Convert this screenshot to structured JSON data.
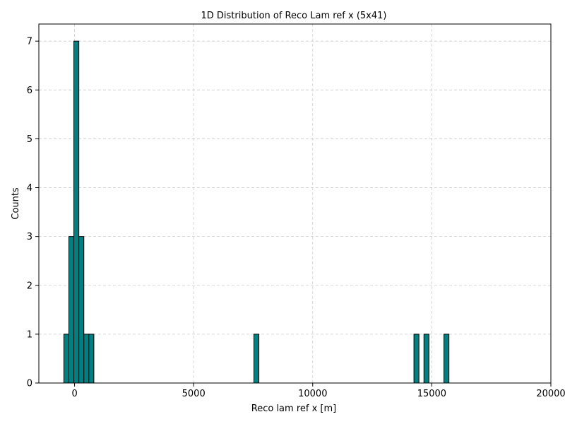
{
  "chart_data": {
    "type": "bar",
    "title": "1D Distribution of Reco Lam ref x (5x41)",
    "xlabel": "Reco lam ref x [m]",
    "ylabel": "Counts",
    "xlim": [
      -1500,
      20000
    ],
    "ylim": [
      0,
      7.35
    ],
    "x_ticks": [
      0,
      5000,
      10000,
      15000,
      20000
    ],
    "x_tick_labels": [
      "0",
      "5000",
      "10000",
      "15000",
      "20000"
    ],
    "y_ticks": [
      0,
      1,
      2,
      3,
      4,
      5,
      6,
      7
    ],
    "y_tick_labels": [
      "0",
      "1",
      "2",
      "3",
      "4",
      "5",
      "6",
      "7"
    ],
    "grid": true,
    "legend": "none",
    "bar_color": "#008080",
    "edge_color": "#000000",
    "histogram_range": [
      -1500,
      19500
    ],
    "bins": [
      {
        "x0": -450,
        "x1": -240,
        "count": 1
      },
      {
        "x0": -240,
        "x1": -30,
        "count": 3
      },
      {
        "x0": -30,
        "x1": 180,
        "count": 7
      },
      {
        "x0": 180,
        "x1": 390,
        "count": 3
      },
      {
        "x0": 390,
        "x1": 600,
        "count": 1
      },
      {
        "x0": 600,
        "x1": 810,
        "count": 1
      },
      {
        "x0": 7530,
        "x1": 7740,
        "count": 1
      },
      {
        "x0": 14250,
        "x1": 14460,
        "count": 1
      },
      {
        "x0": 14670,
        "x1": 14880,
        "count": 1
      },
      {
        "x0": 15510,
        "x1": 15720,
        "count": 1
      }
    ]
  }
}
